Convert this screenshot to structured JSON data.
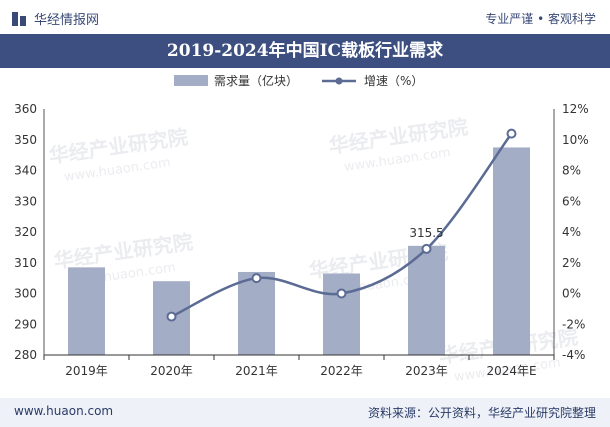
{
  "header": {
    "brand": "华经情报网",
    "slogan": "专业严谨 • 客观科学"
  },
  "watermark": {
    "text": "华经产业研究院",
    "url": "www.huaon.com"
  },
  "footer": {
    "site": "www.huaon.com",
    "source": "资料来源：公开资料，华经产业研究院整理"
  },
  "colors": {
    "bar": "#a4adc6",
    "line": "#5b6b94",
    "banner": "#3c4f80"
  },
  "chart_data": {
    "type": "bar",
    "title": "2019-2024年中国IC载板行业需求",
    "categories": [
      "2019年",
      "2020年",
      "2021年",
      "2022年",
      "2023年",
      "2024年E"
    ],
    "series": [
      {
        "name": "需求量（亿块）",
        "type": "bar",
        "axis": "left",
        "values": [
          308.5,
          304,
          307,
          306.5,
          315.5,
          347.5
        ]
      },
      {
        "name": "增速（%）",
        "type": "line",
        "axis": "right",
        "values": [
          null,
          -1.5,
          1.0,
          0.0,
          2.9,
          10.4
        ]
      }
    ],
    "left_axis": {
      "min": 280,
      "max": 360,
      "ticks": [
        "280",
        "290",
        "300",
        "310",
        "320",
        "330",
        "340",
        "350",
        "360"
      ]
    },
    "right_axis": {
      "min": -4,
      "max": 12,
      "ticks": [
        "-4%",
        "-2%",
        "0%",
        "2%",
        "4%",
        "6%",
        "8%",
        "10%",
        "12%"
      ]
    },
    "data_labels": [
      {
        "index": 4,
        "text": "315.5"
      }
    ],
    "legend_position": "top-center"
  }
}
